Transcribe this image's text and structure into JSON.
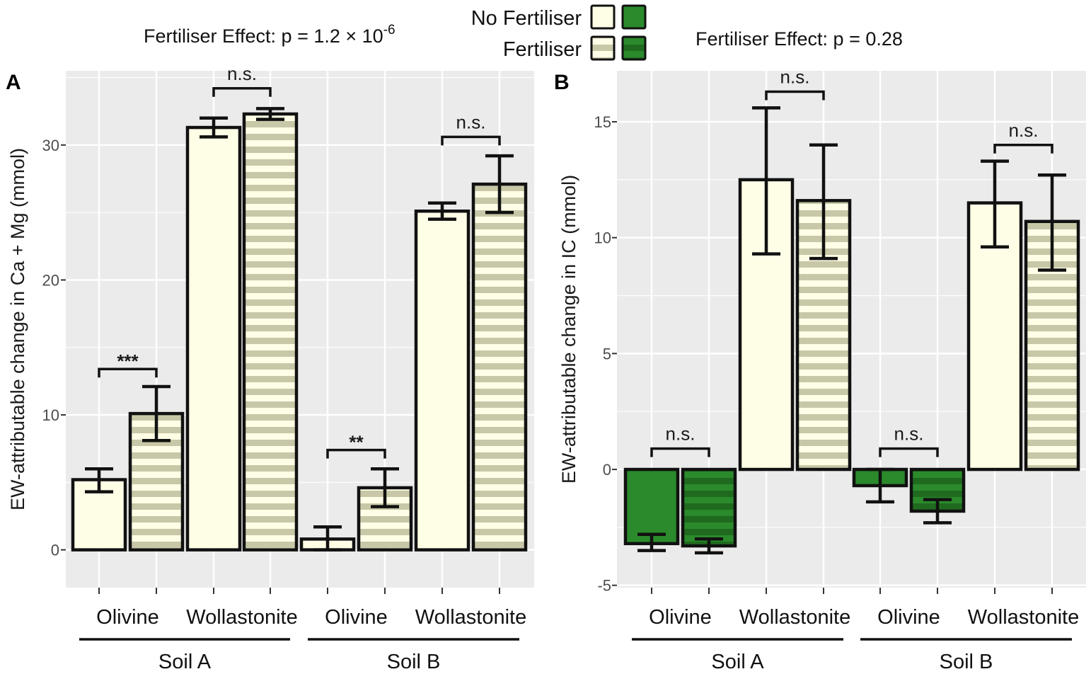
{
  "colors": {
    "panel_bg": "#ebebeb",
    "cream": "#fefde6",
    "green": "#2b8a2b",
    "green_stripe": "#1f6a1f",
    "cream_stripe": "#c8c8a8",
    "outline": "#111111"
  },
  "legend": {
    "entries": [
      {
        "label": "No Fertiliser",
        "fertiliser": false
      },
      {
        "label": "Fertiliser",
        "fertiliser": true
      }
    ]
  },
  "chart_data": [
    {
      "panel": "A",
      "type": "bar",
      "title": "Fertiliser Effect: p = 1.2 × 10",
      "title_exponent": "-6",
      "ylabel": "EW-attributable change in Ca + Mg (mmol)",
      "ylim": [
        -2.8,
        35.5
      ],
      "yticks": [
        0,
        10,
        20,
        30
      ],
      "categories": [
        "Olivine",
        "Wollastonite",
        "Olivine",
        "Wollastonite"
      ],
      "groups": [
        {
          "label": "Soil A",
          "categories": [
            0,
            1
          ]
        },
        {
          "label": "Soil B",
          "categories": [
            2,
            3
          ]
        }
      ],
      "series": [
        {
          "name": "No Fertiliser",
          "values": [
            5.2,
            31.3,
            0.8,
            25.1
          ],
          "err_low": [
            4.3,
            30.6,
            0.0,
            24.5
          ],
          "err_high": [
            6.0,
            32.0,
            1.7,
            25.7
          ]
        },
        {
          "name": "Fertiliser",
          "values": [
            10.1,
            32.3,
            4.6,
            27.1
          ],
          "err_low": [
            8.1,
            31.9,
            3.2,
            25.0
          ],
          "err_high": [
            12.1,
            32.7,
            6.0,
            29.2
          ]
        }
      ],
      "significance": [
        {
          "category": 0,
          "label": "***",
          "y": 13.4
        },
        {
          "category": 1,
          "label": "n.s.",
          "y": 34.2
        },
        {
          "category": 2,
          "label": "**",
          "y": 7.4
        },
        {
          "category": 3,
          "label": "n.s.",
          "y": 30.6
        }
      ]
    },
    {
      "panel": "B",
      "type": "bar",
      "title": "Fertiliser Effect: p = 0.28",
      "title_exponent": "",
      "ylabel": "EW-attributable change in IC (mmol)",
      "ylim": [
        -5.1,
        17.2
      ],
      "yticks": [
        -5,
        0,
        5,
        10,
        15
      ],
      "categories": [
        "Olivine",
        "Wollastonite",
        "Olivine",
        "Wollastonite"
      ],
      "groups": [
        {
          "label": "Soil A",
          "categories": [
            0,
            1
          ]
        },
        {
          "label": "Soil B",
          "categories": [
            2,
            3
          ]
        }
      ],
      "series": [
        {
          "name": "No Fertiliser",
          "values": [
            -3.2,
            12.5,
            -0.7,
            11.5
          ],
          "err_low": [
            -3.5,
            9.3,
            -1.4,
            9.6
          ],
          "err_high": [
            -2.8,
            15.6,
            0.0,
            13.3
          ]
        },
        {
          "name": "Fertiliser",
          "values": [
            -3.3,
            11.6,
            -1.8,
            10.7
          ],
          "err_low": [
            -3.6,
            9.1,
            -2.3,
            8.6
          ],
          "err_high": [
            -3.0,
            14.0,
            -1.3,
            12.7
          ]
        }
      ],
      "significance": [
        {
          "category": 0,
          "label": "n.s.",
          "y": 0.9
        },
        {
          "category": 1,
          "label": "n.s.",
          "y": 16.3
        },
        {
          "category": 2,
          "label": "n.s.",
          "y": 0.9
        },
        {
          "category": 3,
          "label": "n.s.",
          "y": 14.0
        }
      ]
    }
  ]
}
